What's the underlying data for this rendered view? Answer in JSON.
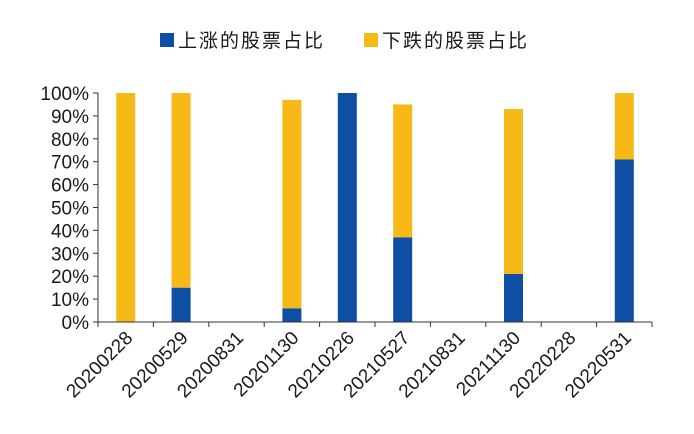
{
  "chart_data": {
    "type": "bar",
    "stacked": true,
    "title": "",
    "xlabel": "",
    "ylabel": "",
    "ylim": [
      0,
      100
    ],
    "y_ticks": [
      "0%",
      "10%",
      "20%",
      "30%",
      "40%",
      "50%",
      "60%",
      "70%",
      "80%",
      "90%",
      "100%"
    ],
    "categories": [
      "20200228",
      "20200529",
      "20200831",
      "20201130",
      "20210226",
      "20210527",
      "20210831",
      "20211130",
      "20220228",
      "20220531"
    ],
    "series": [
      {
        "name": "上涨的股票占比",
        "color": "#0e4ea3",
        "values": [
          0,
          15,
          0,
          6,
          100,
          37,
          0,
          21,
          0,
          71
        ]
      },
      {
        "name": "下跌的股票占比",
        "color": "#f7b916",
        "values": [
          100,
          85,
          0,
          91,
          0,
          58,
          0,
          72,
          0,
          29
        ]
      }
    ],
    "legend_position": "top-center",
    "grid": false
  }
}
